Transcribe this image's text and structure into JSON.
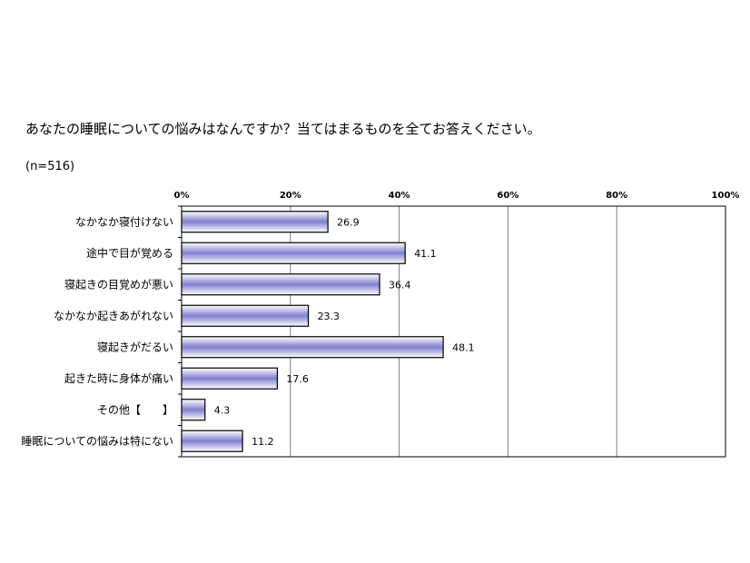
{
  "chart_data": {
    "type": "bar",
    "orientation": "horizontal",
    "title": "あなたの睡眠についての悩みはなんですか？当てはまるものを全てお答えください。",
    "subtitle": "(n=516)",
    "categories": [
      "なかなか寝付けない",
      "途中で目が覚める",
      "寝起きの目覚めが悪い",
      "なかなか起きあがれない",
      "寝起きがだるい",
      "起きた時に身体が痛い",
      "その他【　　】",
      "睡眠についての悩みは特にない"
    ],
    "values": [
      26.9,
      41.1,
      36.4,
      23.3,
      48.1,
      17.6,
      4.3,
      11.2
    ],
    "value_labels": [
      "26.9",
      "41.1",
      "36.4",
      "23.3",
      "48.1",
      "17.6",
      "4.3",
      "11.2"
    ],
    "xlim": [
      0,
      100
    ],
    "xticks": [
      "0%",
      "20%",
      "40%",
      "60%",
      "80%",
      "100%"
    ],
    "grid": true,
    "colors": {
      "bar_light": "#ffffff",
      "bar_dark": "#8080d0",
      "bar_edge": "#000000",
      "grid": "#808080"
    }
  }
}
